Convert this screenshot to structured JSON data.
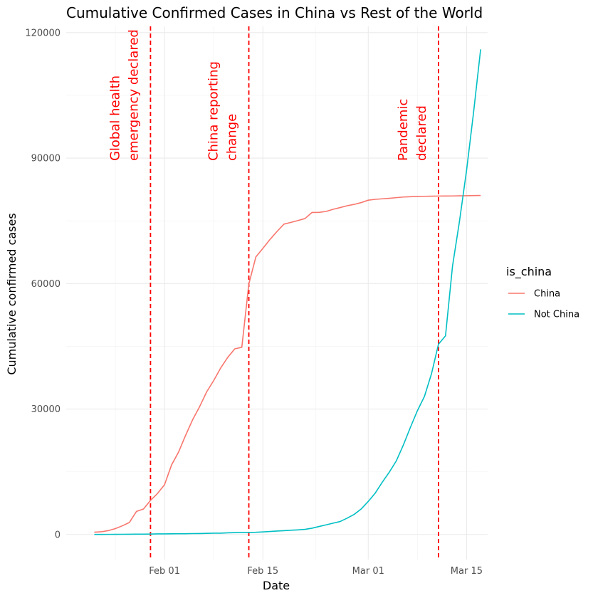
{
  "chart_data": {
    "type": "line",
    "title": "Cumulative Confirmed Cases in China vs Rest of the World",
    "xlabel": "Date",
    "ylabel": "Cumulative confirmed cases",
    "x_type": "date",
    "xlim": [
      "2020-01-18",
      "2020-03-18"
    ],
    "ylim": [
      -6000,
      121500
    ],
    "x_ticks": [
      {
        "date": "2020-02-01",
        "label": "Feb 01"
      },
      {
        "date": "2020-02-15",
        "label": "Feb 15"
      },
      {
        "date": "2020-03-01",
        "label": "Mar 01"
      },
      {
        "date": "2020-03-15",
        "label": "Mar 15"
      }
    ],
    "y_ticks": [
      0,
      30000,
      60000,
      90000,
      120000
    ],
    "y_tick_labels": [
      "0",
      "30000",
      "60000",
      "90000",
      "120000"
    ],
    "grid": true,
    "legend": {
      "title": "is_china",
      "position": "right"
    },
    "series": [
      {
        "name": "China",
        "color": "#F8766D",
        "points": [
          [
            "2020-01-22",
            548
          ],
          [
            "2020-01-23",
            643
          ],
          [
            "2020-01-24",
            920
          ],
          [
            "2020-01-25",
            1406
          ],
          [
            "2020-01-26",
            2075
          ],
          [
            "2020-01-27",
            2877
          ],
          [
            "2020-01-28",
            5509
          ],
          [
            "2020-01-29",
            6087
          ],
          [
            "2020-01-30",
            8141
          ],
          [
            "2020-01-31",
            9802
          ],
          [
            "2020-02-01",
            11891
          ],
          [
            "2020-02-02",
            16630
          ],
          [
            "2020-02-03",
            19716
          ],
          [
            "2020-02-04",
            23707
          ],
          [
            "2020-02-05",
            27440
          ],
          [
            "2020-02-06",
            30587
          ],
          [
            "2020-02-07",
            34110
          ],
          [
            "2020-02-08",
            36814
          ],
          [
            "2020-02-09",
            39829
          ],
          [
            "2020-02-10",
            42354
          ],
          [
            "2020-02-11",
            44386
          ],
          [
            "2020-02-12",
            44759
          ],
          [
            "2020-02-13",
            59895
          ],
          [
            "2020-02-14",
            66358
          ],
          [
            "2020-02-15",
            68413
          ],
          [
            "2020-02-16",
            70513
          ],
          [
            "2020-02-17",
            72434
          ],
          [
            "2020-02-18",
            74211
          ],
          [
            "2020-02-19",
            74619
          ],
          [
            "2020-02-20",
            75077
          ],
          [
            "2020-02-21",
            75550
          ],
          [
            "2020-02-22",
            77001
          ],
          [
            "2020-02-23",
            77022
          ],
          [
            "2020-02-24",
            77241
          ],
          [
            "2020-02-25",
            77754
          ],
          [
            "2020-02-26",
            78166
          ],
          [
            "2020-02-27",
            78600
          ],
          [
            "2020-02-28",
            78928
          ],
          [
            "2020-02-29",
            79356
          ],
          [
            "2020-03-01",
            79932
          ],
          [
            "2020-03-02",
            80136
          ],
          [
            "2020-03-03",
            80261
          ],
          [
            "2020-03-04",
            80386
          ],
          [
            "2020-03-05",
            80537
          ],
          [
            "2020-03-06",
            80690
          ],
          [
            "2020-03-07",
            80770
          ],
          [
            "2020-03-08",
            80823
          ],
          [
            "2020-03-09",
            80860
          ],
          [
            "2020-03-10",
            80887
          ],
          [
            "2020-03-11",
            80921
          ],
          [
            "2020-03-12",
            80932
          ],
          [
            "2020-03-13",
            80945
          ],
          [
            "2020-03-14",
            80977
          ],
          [
            "2020-03-15",
            81003
          ],
          [
            "2020-03-16",
            81033
          ],
          [
            "2020-03-17",
            81058
          ]
        ]
      },
      {
        "name": "Not China",
        "color": "#00BFC4",
        "points": [
          [
            "2020-01-22",
            7
          ],
          [
            "2020-01-23",
            11
          ],
          [
            "2020-01-24",
            21
          ],
          [
            "2020-01-25",
            28
          ],
          [
            "2020-01-26",
            43
          ],
          [
            "2020-01-27",
            50
          ],
          [
            "2020-01-28",
            73
          ],
          [
            "2020-01-29",
            81
          ],
          [
            "2020-01-30",
            105
          ],
          [
            "2020-01-31",
            131
          ],
          [
            "2020-02-01",
            146
          ],
          [
            "2020-02-02",
            160
          ],
          [
            "2020-02-03",
            170
          ],
          [
            "2020-02-04",
            190
          ],
          [
            "2020-02-05",
            214
          ],
          [
            "2020-02-06",
            227
          ],
          [
            "2020-02-07",
            266
          ],
          [
            "2020-02-08",
            309
          ],
          [
            "2020-02-09",
            317
          ],
          [
            "2020-02-10",
            397
          ],
          [
            "2020-02-11",
            443
          ],
          [
            "2020-02-12",
            450
          ],
          [
            "2020-02-13",
            486
          ],
          [
            "2020-02-14",
            526
          ],
          [
            "2020-02-15",
            613
          ],
          [
            "2020-02-16",
            707
          ],
          [
            "2020-02-17",
            825
          ],
          [
            "2020-02-18",
            900
          ],
          [
            "2020-02-19",
            1003
          ],
          [
            "2020-02-20",
            1097
          ],
          [
            "2020-02-21",
            1226
          ],
          [
            "2020-02-22",
            1500
          ],
          [
            "2020-02-23",
            1900
          ],
          [
            "2020-02-24",
            2300
          ],
          [
            "2020-02-25",
            2700
          ],
          [
            "2020-02-26",
            3100
          ],
          [
            "2020-02-27",
            3900
          ],
          [
            "2020-02-28",
            4800
          ],
          [
            "2020-02-29",
            6100
          ],
          [
            "2020-03-01",
            7900
          ],
          [
            "2020-03-02",
            9900
          ],
          [
            "2020-03-03",
            12500
          ],
          [
            "2020-03-04",
            14900
          ],
          [
            "2020-03-05",
            17600
          ],
          [
            "2020-03-06",
            21400
          ],
          [
            "2020-03-07",
            25600
          ],
          [
            "2020-03-08",
            29600
          ],
          [
            "2020-03-09",
            33000
          ],
          [
            "2020-03-10",
            38400
          ],
          [
            "2020-03-11",
            45500
          ],
          [
            "2020-03-12",
            47500
          ],
          [
            "2020-03-13",
            64200
          ],
          [
            "2020-03-14",
            75000
          ],
          [
            "2020-03-15",
            87100
          ],
          [
            "2020-03-16",
            101000
          ],
          [
            "2020-03-17",
            116000
          ]
        ]
      }
    ],
    "vlines": [
      {
        "date": "2020-01-30",
        "label_lines": [
          "Global health",
          "emergency declared"
        ],
        "color": "#FF0000",
        "linetype": "dashed"
      },
      {
        "date": "2020-02-13",
        "label_lines": [
          "China reporting",
          "change"
        ],
        "color": "#FF0000",
        "linetype": "dashed"
      },
      {
        "date": "2020-03-11",
        "label_lines": [
          "Pandemic",
          "declared"
        ],
        "color": "#FF0000",
        "linetype": "dashed"
      }
    ]
  }
}
